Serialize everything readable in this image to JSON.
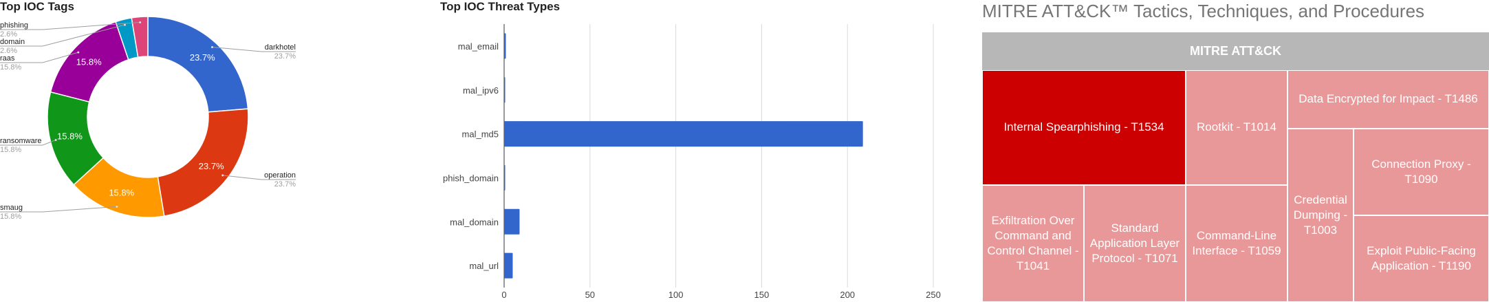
{
  "chart_data": [
    {
      "type": "pie",
      "title": "Top IOC Tags",
      "donut": true,
      "slices": [
        {
          "label": "darkhotel",
          "value": 23.7,
          "display": "23.7%",
          "color": "#3366cc"
        },
        {
          "label": "operation",
          "value": 23.7,
          "display": "23.7%",
          "color": "#dc3912"
        },
        {
          "label": "smaug",
          "value": 15.8,
          "display": "15.8%",
          "color": "#ff9900"
        },
        {
          "label": "ransomware",
          "value": 15.8,
          "display": "15.8%",
          "color": "#109618"
        },
        {
          "label": "raas",
          "value": 15.8,
          "display": "15.8%",
          "color": "#990099"
        },
        {
          "label": "domain",
          "value": 2.6,
          "display": "2.6%",
          "color": "#0099c6"
        },
        {
          "label": "phishing",
          "value": 2.6,
          "display": "2.6%",
          "color": "#dd4477"
        }
      ]
    },
    {
      "type": "bar",
      "orientation": "horizontal",
      "title": "Top IOC Threat Types",
      "categories": [
        "mal_email",
        "mal_ipv6",
        "mal_md5",
        "phish_domain",
        "mal_domain",
        "mal_url"
      ],
      "values": [
        1,
        0.5,
        209,
        0.5,
        9,
        5
      ],
      "xlim": [
        0,
        250
      ],
      "xticks": [
        0,
        50,
        100,
        150,
        200,
        250
      ],
      "grid": true,
      "color": "#3366cc"
    },
    {
      "type": "treemap",
      "title": "MITRE ATT&CK™ Tactics, Techniques, and Procedures",
      "root": "MITRE ATT&CK",
      "cells": [
        {
          "label": "Internal Spearphishing - T1534",
          "color": "#cc0000"
        },
        {
          "label": "Rootkit - T1014",
          "color": "#e99899"
        },
        {
          "label": "Data Encrypted for Impact - T1486",
          "color": "#e99899"
        },
        {
          "label": "Exfiltration Over Command and Control Channel - T1041",
          "color": "#e99899"
        },
        {
          "label": "Standard Application Layer Protocol - T1071",
          "color": "#e99899"
        },
        {
          "label": "Command-Line Interface - T1059",
          "color": "#e99899"
        },
        {
          "label": "Credential Dumping - T1003",
          "color": "#e99899"
        },
        {
          "label": "Connection Proxy - T1090",
          "color": "#e99899"
        },
        {
          "label": "Exploit Public-Facing Application - T1190",
          "color": "#e99899"
        }
      ]
    }
  ]
}
